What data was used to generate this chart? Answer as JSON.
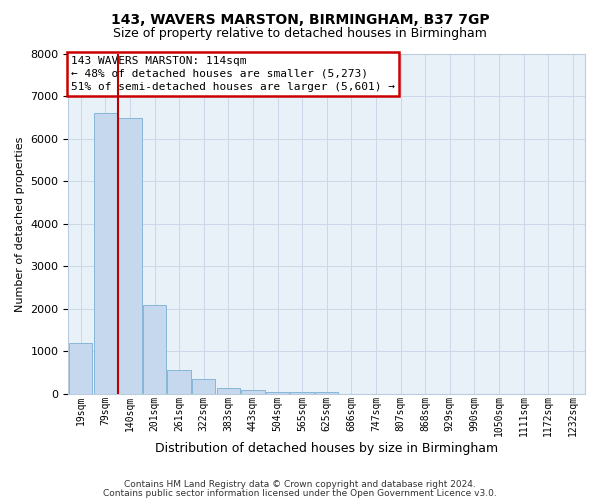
{
  "title1": "143, WAVERS MARSTON, BIRMINGHAM, B37 7GP",
  "title2": "Size of property relative to detached houses in Birmingham",
  "xlabel": "Distribution of detached houses by size in Birmingham",
  "ylabel": "Number of detached properties",
  "footer1": "Contains HM Land Registry data © Crown copyright and database right 2024.",
  "footer2": "Contains public sector information licensed under the Open Government Licence v3.0.",
  "annotation_line1": "143 WAVERS MARSTON: 114sqm",
  "annotation_line2": "← 48% of detached houses are smaller (5,273)",
  "annotation_line3": "51% of semi-detached houses are larger (5,601) →",
  "bin_labels": [
    "19sqm",
    "79sqm",
    "140sqm",
    "201sqm",
    "261sqm",
    "322sqm",
    "383sqm",
    "443sqm",
    "504sqm",
    "565sqm",
    "625sqm",
    "686sqm",
    "747sqm",
    "807sqm",
    "868sqm",
    "929sqm",
    "990sqm",
    "1050sqm",
    "1111sqm",
    "1172sqm",
    "1232sqm"
  ],
  "bar_values": [
    1200,
    6600,
    6500,
    2100,
    570,
    350,
    140,
    90,
    55,
    45,
    50,
    0,
    0,
    0,
    0,
    0,
    0,
    0,
    0,
    0,
    0
  ],
  "bar_color": "#c5d8ee",
  "bar_edge_color": "#7aafd4",
  "vline_color": "#bb0000",
  "vline_position": 1.5,
  "ylim": [
    0,
    8000
  ],
  "yticks": [
    0,
    1000,
    2000,
    3000,
    4000,
    5000,
    6000,
    7000,
    8000
  ],
  "grid_color": "#ccd8e8",
  "background_color": "#e8f0f8",
  "annotation_box_bg": "#ffffff",
  "annotation_box_edge": "#cc0000",
  "title_fontsize": 10,
  "subtitle_fontsize": 9,
  "ylabel_fontsize": 8,
  "xlabel_fontsize": 9,
  "tick_fontsize": 7,
  "annotation_fontsize": 8,
  "footer_fontsize": 6.5
}
